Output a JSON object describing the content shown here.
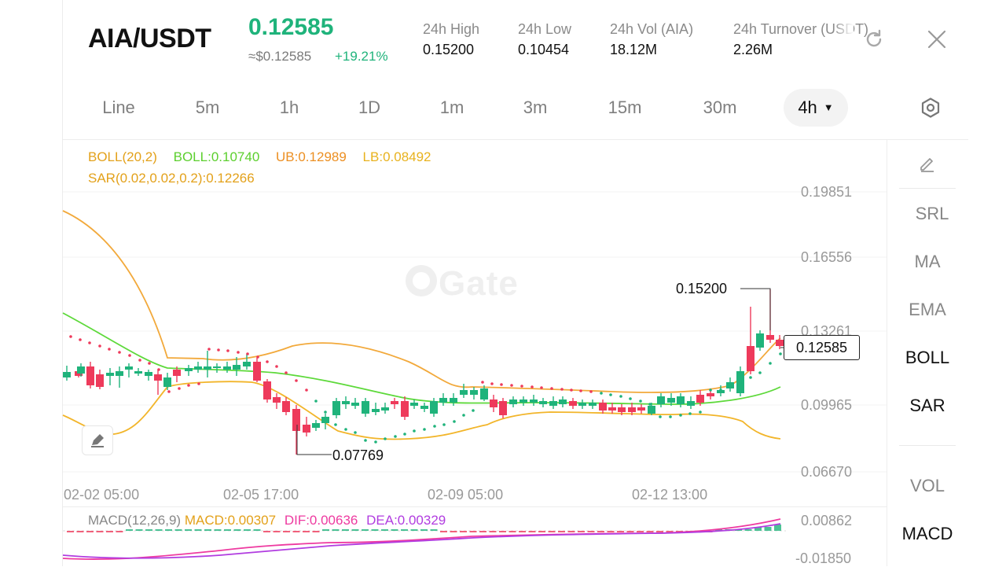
{
  "header": {
    "pair": "AIA/USDT",
    "last_price": "0.12585",
    "fiat_price": "≈$0.12585",
    "change": "+19.21%",
    "stats": [
      {
        "label": "24h  High",
        "value": "0.15200"
      },
      {
        "label": "24h  Low",
        "value": "0.10454"
      },
      {
        "label": "24h  Vol (AIA)",
        "value": "18.12M"
      },
      {
        "label": "24h  Turnover (USDT)",
        "value": "2.26M"
      }
    ]
  },
  "timeframes": [
    "Line",
    "5m",
    "1h",
    "1D",
    "1m",
    "3m",
    "15m",
    "30m"
  ],
  "active_timeframe": "4h",
  "indicators": {
    "boll_name": "BOLL(20,2)",
    "boll_mid": "BOLL:0.10740",
    "boll_ub": "UB:0.12989",
    "boll_lb": "LB:0.08492",
    "sar": "SAR(0.02,0.02,0.2):0.12266",
    "macd_name": "MACD(12,26,9)",
    "macd_val": "MACD:0.00307",
    "dif": "DIF:0.00636",
    "dea": "DEA:0.00329"
  },
  "price_axis": [
    "0.19851",
    "0.16556",
    "0.13261",
    "0.09965",
    "0.06670"
  ],
  "macd_axis": [
    "0.00862",
    "-0.01850"
  ],
  "time_axis": [
    "02-02 05:00",
    "02-05 17:00",
    "02-09 05:00",
    "02-12 13:00"
  ],
  "current_price_tag": "0.12585",
  "high_annotation": "0.15200",
  "low_annotation": "0.07769",
  "watermark": "Gate",
  "tools": [
    "SRL",
    "MA",
    "EMA",
    "BOLL",
    "SAR",
    "VOL",
    "MACD"
  ],
  "colors": {
    "up": "#1fb37b",
    "down": "#ee3a5b",
    "boll_mid": "#5dd93a",
    "boll_band": "#f2a93b",
    "sar": "#e8a320",
    "dif": "#ee3aa0",
    "dea": "#b13ce0"
  }
}
